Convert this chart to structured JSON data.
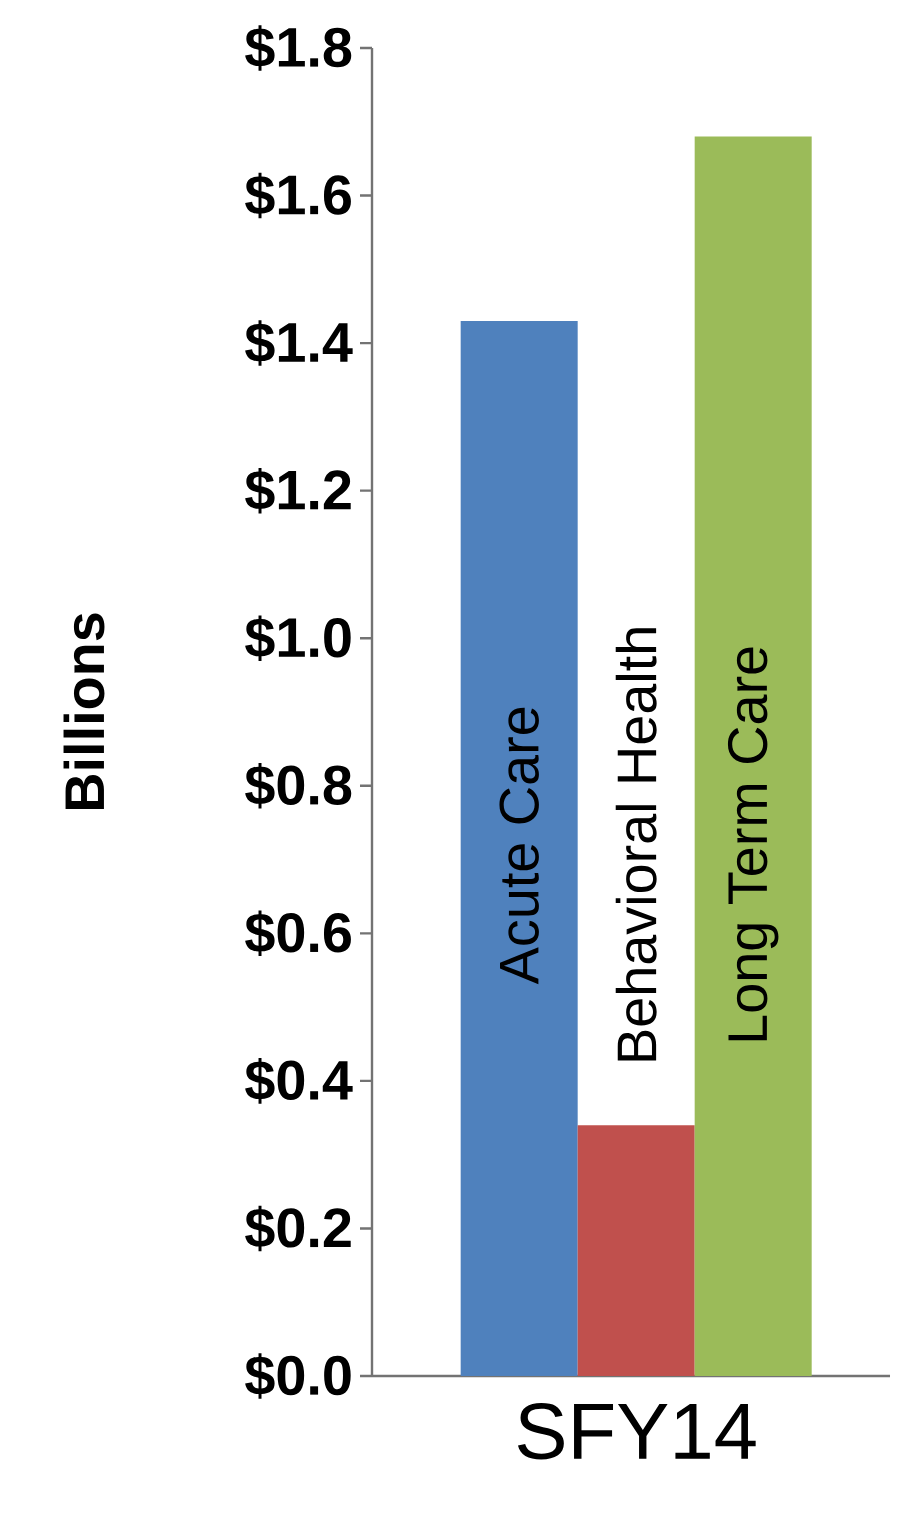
{
  "chart_data": {
    "type": "bar",
    "ylabel": "Billions",
    "categories": [
      "SFY14"
    ],
    "series": [
      {
        "name": "Acute Care",
        "color": "#4f81bd",
        "values": [
          1.43
        ]
      },
      {
        "name": "Behavioral Health",
        "color": "#c0504d",
        "values": [
          0.34
        ]
      },
      {
        "name": "Long Term Care",
        "color": "#9bbb59",
        "values": [
          1.68
        ]
      }
    ],
    "ylim": [
      0,
      1.8
    ],
    "yticks": [
      {
        "value": 0,
        "label": "$0.0"
      },
      {
        "value": 0.2,
        "label": "$0.2"
      },
      {
        "value": 0.4,
        "label": "$0.4"
      },
      {
        "value": 0.6,
        "label": "$0.6"
      },
      {
        "value": 0.8,
        "label": "$0.8"
      },
      {
        "value": 1.0,
        "label": "$1.0"
      },
      {
        "value": 1.2,
        "label": "$1.2"
      },
      {
        "value": 1.4,
        "label": "$1.4"
      },
      {
        "value": 1.6,
        "label": "$1.6"
      },
      {
        "value": 1.8,
        "label": "$1.8"
      }
    ],
    "grid": false
  }
}
